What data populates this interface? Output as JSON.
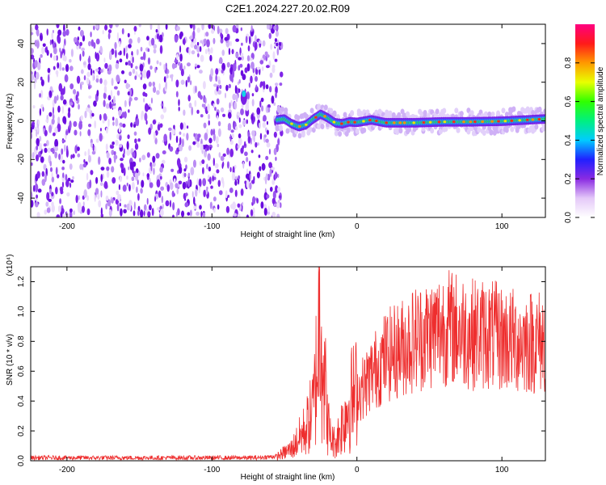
{
  "figure": {
    "title": "C2E1.2024.227.20.02.R09"
  },
  "chart_data": [
    {
      "type": "heatmap",
      "xlabel": "Height of straight line (km)",
      "ylabel": "Frequency (Hz)",
      "xlim": [
        -225,
        130
      ],
      "ylim": [
        -50,
        50
      ],
      "xticks": [
        -200,
        -100,
        0,
        100
      ],
      "yticks": [
        -40,
        -20,
        0,
        20,
        40
      ],
      "colorbar": {
        "label": "Normalized spectral amplitude",
        "range": [
          0.0,
          1.0
        ],
        "ticks": [
          "0.0",
          "0.2",
          "0.4",
          "0.6",
          "0.8"
        ]
      },
      "ridge": {
        "x": [
          -55,
          -50,
          -45,
          -40,
          -35,
          -30,
          -25,
          -20,
          -15,
          -10,
          -5,
          0,
          10,
          20,
          40,
          60,
          80,
          100,
          130
        ],
        "y": [
          0.5,
          1.0,
          -1.5,
          -3.0,
          -2.0,
          1.0,
          3.5,
          1.5,
          -1.0,
          -1.5,
          -0.5,
          -0.8,
          0.5,
          -1.0,
          -1.0,
          -0.5,
          -0.5,
          -0.2,
          1.0
        ]
      }
    },
    {
      "type": "line",
      "xlabel": "Height of straight line (km)",
      "ylabel": "SNR (10 * v/v)",
      "y_scale_label": "(x10⁴)",
      "xlim": [
        -225,
        130
      ],
      "ylim": [
        0,
        1.3
      ],
      "xticks": [
        -200,
        -100,
        0,
        100
      ],
      "yticks": [
        "0.0",
        "0.2",
        "0.4",
        "0.6",
        "0.8",
        "1.0",
        "1.2"
      ],
      "series": [
        {
          "color": "#ee2e2e",
          "x": [
            -225,
            -200,
            -150,
            -100,
            -70,
            -55,
            -45,
            -40,
            -35,
            -30,
            -28,
            -26,
            -25,
            -24,
            -22,
            -20,
            -18,
            -15,
            -10,
            -5,
            0,
            5,
            10,
            20,
            30,
            40,
            50,
            60,
            70,
            80,
            90,
            100,
            110,
            120,
            130
          ],
          "y": [
            0.02,
            0.02,
            0.02,
            0.02,
            0.02,
            0.03,
            0.08,
            0.15,
            0.22,
            0.35,
            0.6,
            0.9,
            1.28,
            0.8,
            0.5,
            0.25,
            0.15,
            0.12,
            0.25,
            0.4,
            0.45,
            0.5,
            0.58,
            0.7,
            0.75,
            0.82,
            0.85,
            0.9,
            0.88,
            0.85,
            0.85,
            0.82,
            0.8,
            0.8,
            0.8
          ]
        }
      ]
    }
  ]
}
